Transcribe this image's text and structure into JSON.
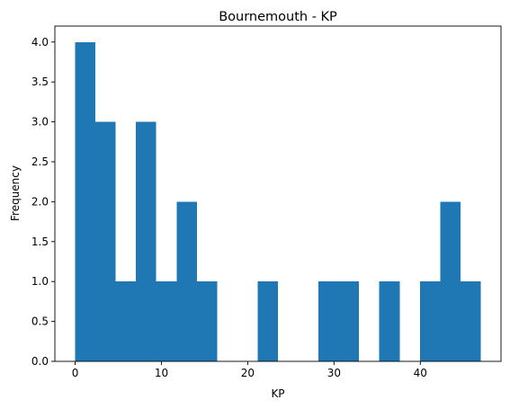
{
  "chart_data": {
    "type": "bar",
    "title": "Bournemouth - KP",
    "xlabel": "KP",
    "ylabel": "Frequency",
    "xlim": [
      -2.35,
      49.35
    ],
    "ylim": [
      0,
      4.2
    ],
    "xticks": [
      0,
      10,
      20,
      30,
      40
    ],
    "yticks": [
      0.0,
      0.5,
      1.0,
      1.5,
      2.0,
      2.5,
      3.0,
      3.5,
      4.0
    ],
    "ytick_labels": [
      "0.0",
      "0.5",
      "1.0",
      "1.5",
      "2.0",
      "2.5",
      "3.0",
      "3.5",
      "4.0"
    ],
    "bins": {
      "edges": [
        0,
        2.35,
        4.7,
        7.05,
        9.4,
        11.75,
        14.1,
        16.45,
        18.8,
        21.15,
        23.5,
        25.85,
        28.2,
        30.55,
        32.9,
        35.25,
        37.6,
        39.95,
        42.3,
        44.65,
        47.0
      ],
      "counts": [
        4,
        3,
        1,
        3,
        1,
        2,
        1,
        0,
        0,
        1,
        0,
        0,
        1,
        1,
        0,
        1,
        0,
        1,
        2,
        1
      ]
    },
    "bar_color": "#1f77b4",
    "grid": false,
    "legend": "none"
  }
}
